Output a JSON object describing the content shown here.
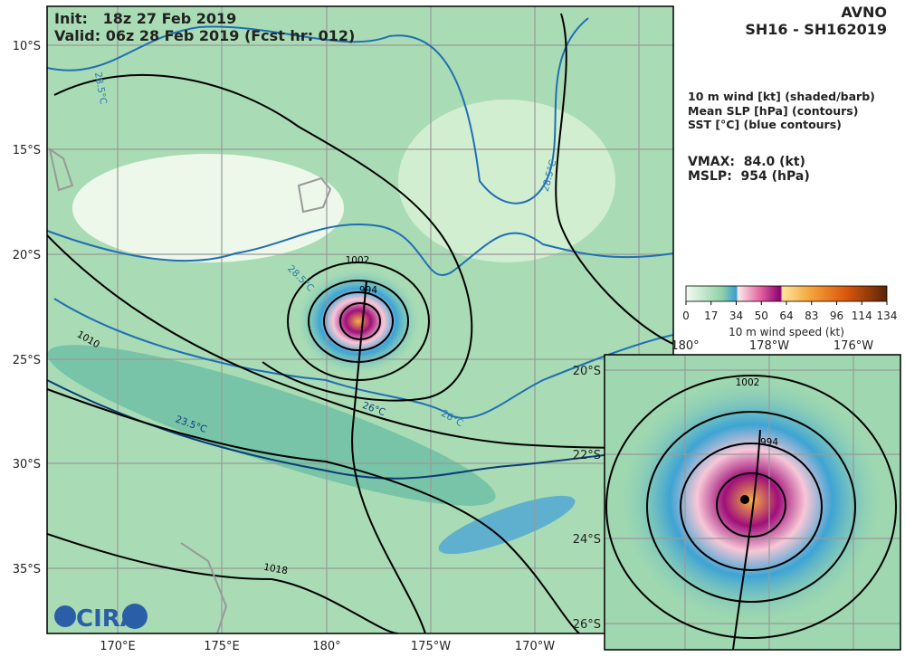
{
  "header": {
    "init": "Init:   18z 27 Feb 2019",
    "valid": "Valid: 06z 28 Feb 2019 (Fcst hr: 012)",
    "model": "AVNO",
    "storm": "SH16 - SH162019"
  },
  "legend": {
    "lines": [
      "10 m wind [kt] (shaded/barb)",
      "Mean SLP [hPa] (contours)",
      "SST [°C] (blue contours)"
    ],
    "vmax": "VMAX:  84.0 (kt)",
    "mslp": "MSLP:  954 (hPa)"
  },
  "colorbar": {
    "ticks": [
      "0",
      "17",
      "34",
      "50",
      "64",
      "83",
      "96",
      "114",
      "134"
    ],
    "label": "10 m wind speed (kt)"
  },
  "map": {
    "lat_labels": [
      "10°S",
      "15°S",
      "20°S",
      "25°S",
      "30°S",
      "35°S"
    ],
    "lon_labels": [
      "170°E",
      "175°E",
      "180°",
      "175°W",
      "170°W"
    ],
    "contour_labels": [
      "1002",
      "994",
      "1010",
      "1018",
      "28.5°C",
      "28.5°C",
      "28.5°C",
      "23.5°C",
      "26°C",
      "26°C"
    ]
  },
  "inset": {
    "lon_labels": [
      "180°",
      "178°W",
      "176°W"
    ],
    "lat_labels": [
      "20°S",
      "22°S",
      "24°S",
      "26°S"
    ],
    "contour_labels": [
      "1002",
      "994"
    ]
  },
  "logo": "CIRA"
}
